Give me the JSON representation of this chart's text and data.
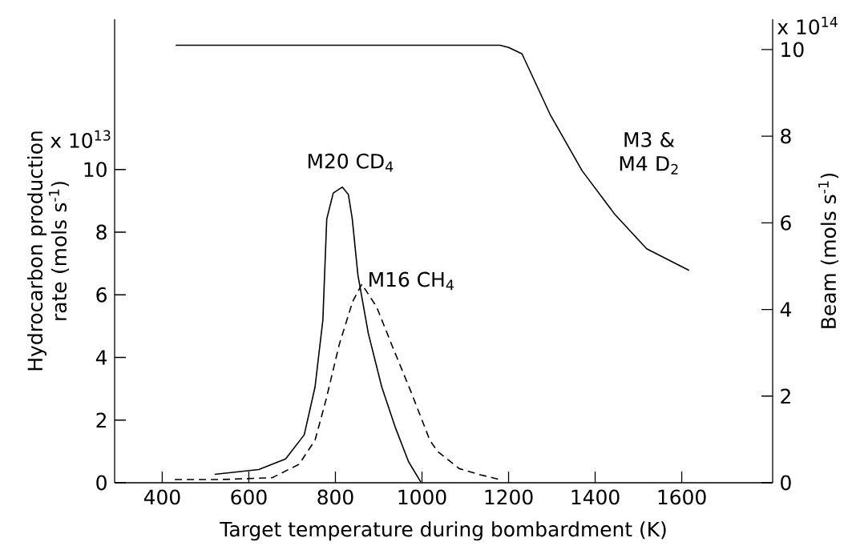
{
  "chart_data": {
    "type": "line",
    "xlabel": "Target temperature during bombardment (K)",
    "ylabel": "Hydrocarbon production rate (mols s$^{-1}$)",
    "y2label": "Beam (mols s$^{-1}$)",
    "annotations": [
      "x 10$^{13}$",
      "x 10$^{14}$"
    ],
    "xlim": [
      290,
      1810
    ],
    "ylim": [
      0,
      14.8
    ],
    "y2lim": [
      0,
      10.7
    ],
    "xticks": [
      400,
      600,
      800,
      1000,
      1200,
      1400,
      1600
    ],
    "yticks": [
      0,
      2,
      4,
      6,
      8,
      10
    ],
    "y2ticks": [
      0,
      2,
      4,
      6,
      8,
      10
    ],
    "marker": "none",
    "grid": false,
    "series": [
      {
        "name": "M20  CD$_{4}$",
        "color": "#000000",
        "line_style": "solid",
        "x": [
          521,
          623,
          685,
          728,
          753,
          771,
          780,
          795,
          816,
          830,
          839,
          852,
          876,
          907,
          938,
          969,
          997
        ],
        "values": [
          0.27,
          0.42,
          0.76,
          1.53,
          3.06,
          5.19,
          8.42,
          9.25,
          9.44,
          9.2,
          8.42,
          6.63,
          4.77,
          3.06,
          1.78,
          0.67,
          0.03
        ]
      },
      {
        "name": "M16 CH$_{4}$",
        "color": "#000000",
        "line_style": "dashed",
        "x": [
          429,
          531,
          654,
          716,
          753,
          778,
          809,
          840,
          861,
          895,
          932,
          975,
          1018,
          1036,
          1086,
          1136,
          1180
        ],
        "values": [
          0.1,
          0.1,
          0.16,
          0.59,
          1.36,
          2.63,
          4.42,
          5.79,
          6.34,
          5.62,
          4.34,
          2.89,
          1.36,
          1.0,
          0.45,
          0.25,
          0.1
        ]
      },
      {
        "name": "M3 & M4 D$_{2}$",
        "color": "#000000",
        "line_style": "solid",
        "axis": "y2",
        "x": [
          431,
          1180,
          1200,
          1231,
          1296,
          1370,
          1445,
          1519,
          1617
        ],
        "values": [
          10.1,
          10.1,
          10.05,
          9.9,
          8.5,
          7.2,
          6.2,
          5.4,
          4.9
        ]
      }
    ]
  }
}
